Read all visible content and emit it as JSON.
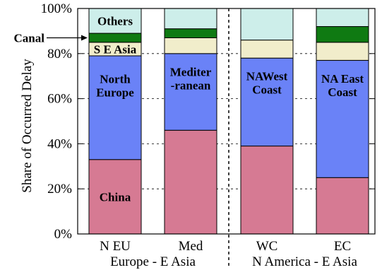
{
  "chart_data": {
    "type": "bar",
    "stacked": true,
    "ylabel": "Share of Occurred Delay",
    "ylim": [
      0,
      100
    ],
    "yticks": [
      "0%",
      "20%",
      "40%",
      "60%",
      "80%",
      "100%"
    ],
    "grid": true,
    "categories": [
      "N EU",
      "Med",
      "WC",
      "EC"
    ],
    "groups": [
      {
        "label": "Europe - E Asia",
        "categories": [
          "N EU",
          "Med"
        ]
      },
      {
        "label": "N America - E Asia",
        "categories": [
          "WC",
          "EC"
        ]
      }
    ],
    "series": [
      {
        "key": "china",
        "color": "#d67a93",
        "values": [
          33,
          46,
          39,
          25
        ]
      },
      {
        "key": "region",
        "color": "#6a82f7",
        "values": [
          46,
          34,
          39,
          52
        ]
      },
      {
        "key": "seasia",
        "color": "#f1edcb",
        "values": [
          6,
          7,
          8,
          8
        ]
      },
      {
        "key": "canal",
        "color": "#0f7a12",
        "values": [
          4,
          4,
          0,
          7
        ]
      },
      {
        "key": "others",
        "color": "#cdeeea",
        "values": [
          11,
          9,
          14,
          8
        ]
      }
    ],
    "segment_labels": [
      {
        "bar": 0,
        "series": "china",
        "lines": [
          "China"
        ]
      },
      {
        "bar": 0,
        "series": "region",
        "lines": [
          "North",
          "Europe"
        ]
      },
      {
        "bar": 1,
        "series": "region",
        "lines": [
          "Mediter",
          "-ranean"
        ]
      },
      {
        "bar": 2,
        "series": "region",
        "lines": [
          "NAWest",
          "Coast"
        ]
      },
      {
        "bar": 3,
        "series": "region",
        "lines": [
          "NA East",
          "Coast"
        ]
      },
      {
        "bar": 0,
        "series": "seasia",
        "lines": [
          "S E Asia"
        ]
      },
      {
        "bar": 0,
        "series": "others",
        "lines": [
          "Others"
        ]
      }
    ],
    "annotations": [
      {
        "text": "Canal",
        "points_to": {
          "bar": 0,
          "series": "canal"
        }
      }
    ]
  }
}
